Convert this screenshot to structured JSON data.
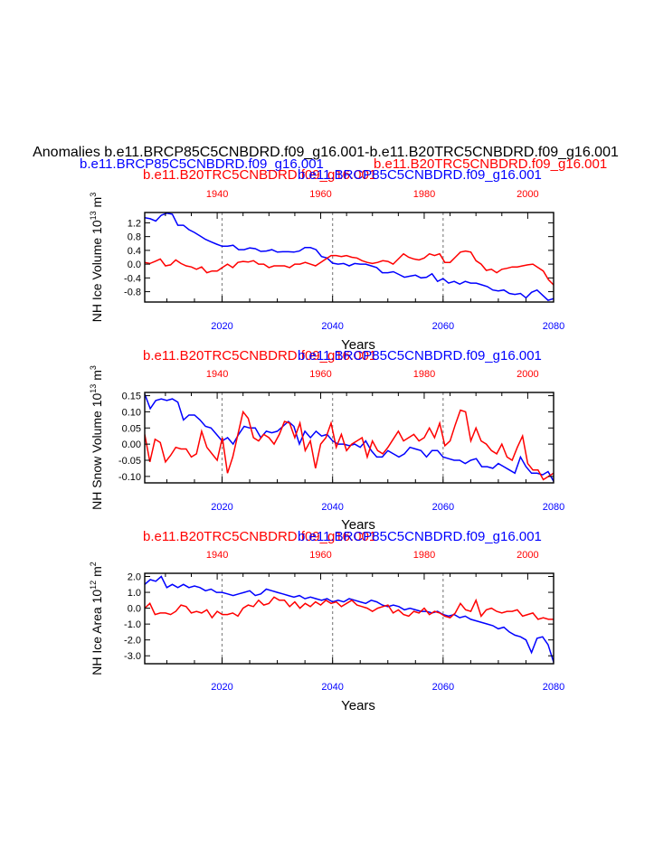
{
  "header": {
    "main_title": "Anomalies b.e11.BRCP85C5CNBDRD.f09_g16.001-b.e11.B20TRC5CNBDRD.f09_g16.001",
    "legend_blue": "b.e11.BRCP85C5CNBDRD.f09_g16.001",
    "legend_red": "b.e11.B20TRC5CNBDRD.f09_g16.001"
  },
  "colors": {
    "blue": "#0000ff",
    "red": "#ff0000",
    "grid": "#888888"
  },
  "chart_data": [
    {
      "type": "line",
      "ylabel_main": "NH Ice Volume 10",
      "ylabel_exp": "13",
      "ylabel_unit": " m",
      "ylabel_unit_exp": "3",
      "top_title_red": "b.e11.B20TRC5CNBDRD.f09_g16.001",
      "top_title_blue": "b.e11.BRCP85C5CNBDRD.f09_g16.001",
      "xlabel": "Years",
      "xlim": [
        2006,
        2080
      ],
      "ylim": [
        -1.1,
        1.5
      ],
      "yticks": [
        -0.8,
        -0.4,
        0.0,
        0.4,
        0.8,
        1.2
      ],
      "ytick_labels": [
        "-0.8",
        "-0.4",
        "0.0",
        "0.4",
        "0.8",
        "1.2"
      ],
      "bottom_xticks": [
        2020,
        2040,
        2060,
        2080
      ],
      "bottom_xtick_labels": [
        "2020",
        "2040",
        "2060",
        "2080"
      ],
      "top_xlim": [
        1926,
        2005
      ],
      "top_xticks": [
        1940,
        1960,
        1980,
        2000
      ],
      "top_xtick_labels": [
        "1940",
        "1960",
        "1980",
        "2000"
      ],
      "dashed_lines_x": [
        2020,
        2040,
        2060
      ],
      "series": [
        {
          "name": "b.e11.BRCP85C5CNBDRD.f09_g16.001",
          "color": "blue",
          "x_start": 2006,
          "values": [
            1.35,
            1.32,
            1.25,
            1.42,
            1.48,
            1.45,
            1.13,
            1.13,
            1.0,
            0.92,
            0.82,
            0.72,
            0.65,
            0.58,
            0.52,
            0.52,
            0.55,
            0.42,
            0.42,
            0.47,
            0.45,
            0.37,
            0.38,
            0.42,
            0.35,
            0.36,
            0.36,
            0.35,
            0.38,
            0.48,
            0.48,
            0.42,
            0.22,
            0.18,
            0.03,
            0.0,
            0.02,
            -0.05,
            0.02,
            0.0,
            0.0,
            -0.05,
            -0.1,
            -0.25,
            -0.25,
            -0.22,
            -0.3,
            -0.38,
            -0.35,
            -0.32,
            -0.4,
            -0.38,
            -0.28,
            -0.5,
            -0.42,
            -0.55,
            -0.5,
            -0.58,
            -0.5,
            -0.55,
            -0.55,
            -0.6,
            -0.65,
            -0.75,
            -0.78,
            -0.75,
            -0.85,
            -0.88,
            -0.85,
            -0.98,
            -0.82,
            -0.75,
            -0.9,
            -1.05,
            -1.0,
            -0.95
          ]
        },
        {
          "name": "b.e11.B20TRC5CNBDRD.f09_g16.001",
          "color": "red",
          "x_start": 1926,
          "values": [
            0.05,
            0.02,
            0.08,
            0.15,
            -0.05,
            -0.02,
            0.12,
            0.02,
            -0.05,
            -0.08,
            -0.15,
            -0.08,
            -0.25,
            -0.2,
            -0.2,
            -0.1,
            0.0,
            -0.1,
            0.05,
            0.08,
            0.06,
            0.1,
            0.0,
            0.0,
            -0.1,
            -0.05,
            -0.05,
            -0.05,
            -0.1,
            0.0,
            0.0,
            0.05,
            0.0,
            -0.05,
            0.05,
            0.15,
            0.25,
            0.25,
            0.22,
            0.25,
            0.2,
            0.18,
            0.1,
            0.05,
            0.02,
            0.05,
            0.1,
            0.08,
            0.0,
            0.15,
            0.3,
            0.2,
            0.15,
            0.12,
            0.18,
            0.3,
            0.25,
            0.3,
            0.05,
            0.05,
            0.2,
            0.35,
            0.38,
            0.35,
            0.1,
            0.0,
            -0.18,
            -0.15,
            -0.25,
            -0.15,
            -0.12,
            -0.08,
            -0.08,
            -0.05,
            -0.02,
            0.0,
            -0.1,
            -0.2,
            -0.45,
            -0.6,
            -0.7,
            -0.65
          ]
        }
      ]
    },
    {
      "type": "line",
      "ylabel_main": "NH Snow Volume 10",
      "ylabel_exp": "13",
      "ylabel_unit": " m",
      "ylabel_unit_exp": "3",
      "top_title_red": "b.e11.B20TRC5CNBDRD.f09_g16.001",
      "top_title_blue": "b.e11.BRCP85C5CNBDRD.f09_g16.001",
      "xlabel": "Years",
      "xlim": [
        2006,
        2080
      ],
      "ylim": [
        -0.12,
        0.16
      ],
      "yticks": [
        -0.1,
        -0.05,
        0.0,
        0.05,
        0.1,
        0.15
      ],
      "ytick_labels": [
        "-0.10",
        "-0.05",
        "0.00",
        "0.05",
        "0.10",
        "0.15"
      ],
      "bottom_xticks": [
        2020,
        2040,
        2060,
        2080
      ],
      "bottom_xtick_labels": [
        "2020",
        "2040",
        "2060",
        "2080"
      ],
      "top_xlim": [
        1926,
        2005
      ],
      "top_xticks": [
        1940,
        1960,
        1980,
        2000
      ],
      "top_xtick_labels": [
        "1940",
        "1960",
        "1980",
        "2000"
      ],
      "dashed_lines_x": [
        2020,
        2040,
        2060
      ],
      "series": [
        {
          "name": "b.e11.BRCP85C5CNBDRD.f09_g16.001",
          "color": "blue",
          "x_start": 2006,
          "values": [
            0.155,
            0.11,
            0.135,
            0.14,
            0.135,
            0.14,
            0.13,
            0.075,
            0.09,
            0.09,
            0.075,
            0.055,
            0.05,
            0.03,
            0.01,
            0.02,
            0.0,
            0.03,
            0.055,
            0.05,
            0.05,
            0.02,
            0.04,
            0.035,
            0.04,
            0.055,
            0.07,
            0.055,
            0.0,
            0.04,
            0.02,
            0.04,
            0.025,
            0.03,
            0.01,
            0.0,
            0.0,
            -0.005,
            0.0,
            -0.01,
            0.01,
            -0.02,
            -0.04,
            -0.04,
            -0.02,
            -0.03,
            -0.04,
            -0.03,
            -0.01,
            -0.015,
            -0.02,
            -0.04,
            -0.02,
            -0.02,
            -0.04,
            -0.045,
            -0.05,
            -0.05,
            -0.06,
            -0.05,
            -0.045,
            -0.07,
            -0.07,
            -0.075,
            -0.06,
            -0.07,
            -0.08,
            -0.09,
            -0.04,
            -0.07,
            -0.09,
            -0.09,
            -0.095,
            -0.085,
            -0.115,
            -0.11
          ]
        },
        {
          "name": "b.e11.B20TRC5CNBDRD.f09_g16.001",
          "color": "red",
          "x_start": 1926,
          "values": [
            0.03,
            -0.055,
            0.015,
            0.005,
            -0.055,
            -0.035,
            -0.01,
            -0.015,
            -0.015,
            -0.04,
            -0.03,
            0.04,
            -0.01,
            -0.03,
            -0.05,
            0.02,
            -0.09,
            -0.04,
            0.03,
            0.1,
            0.08,
            0.02,
            0.01,
            0.03,
            0.02,
            0.0,
            0.03,
            0.07,
            0.065,
            0.02,
            0.065,
            -0.02,
            0.01,
            -0.075,
            0.0,
            0.02,
            0.065,
            -0.01,
            0.03,
            -0.02,
            0.0,
            0.01,
            0.02,
            -0.04,
            0.01,
            -0.02,
            -0.03,
            -0.01,
            0.015,
            0.04,
            0.01,
            0.02,
            0.03,
            0.01,
            0.02,
            0.05,
            0.02,
            0.065,
            -0.005,
            0.01,
            0.06,
            0.105,
            0.1,
            0.01,
            0.05,
            0.01,
            0.0,
            -0.02,
            -0.03,
            0.0,
            -0.04,
            -0.05,
            -0.01,
            0.025,
            -0.06,
            -0.08,
            -0.08,
            -0.11,
            -0.1,
            -0.09
          ]
        }
      ]
    },
    {
      "type": "line",
      "ylabel_main": "NH Ice Area 10",
      "ylabel_exp": "12",
      "ylabel_unit": " m",
      "ylabel_unit_exp": "2",
      "top_title_red": "b.e11.B20TRC5CNBDRD.f09_g16.001",
      "top_title_blue": "b.e11.BRCP85C5CNBDRD.f09_g16.001",
      "xlabel": "Years",
      "xlim": [
        2006,
        2080
      ],
      "ylim": [
        -3.5,
        2.2
      ],
      "yticks": [
        -3.0,
        -2.0,
        -1.0,
        0.0,
        1.0,
        2.0
      ],
      "ytick_labels": [
        "-3.0",
        "-2.0",
        "-1.0",
        "0.0",
        "1.0",
        "2.0"
      ],
      "bottom_xticks": [
        2020,
        2040,
        2060,
        2080
      ],
      "bottom_xtick_labels": [
        "2020",
        "2040",
        "2060",
        "2080"
      ],
      "top_xlim": [
        1926,
        2005
      ],
      "top_xticks": [
        1940,
        1960,
        1980,
        2000
      ],
      "top_xtick_labels": [
        "1940",
        "1960",
        "1980",
        "2000"
      ],
      "dashed_lines_x": [
        2020,
        2040,
        2060
      ],
      "series": [
        {
          "name": "b.e11.BRCP85C5CNBDRD.f09_g16.001",
          "color": "blue",
          "x_start": 2006,
          "values": [
            1.5,
            1.8,
            1.7,
            2.0,
            1.3,
            1.5,
            1.3,
            1.5,
            1.3,
            1.4,
            1.3,
            1.1,
            1.2,
            1.0,
            1.0,
            0.9,
            0.8,
            0.9,
            1.0,
            1.1,
            0.8,
            0.9,
            1.2,
            1.1,
            1.0,
            0.9,
            0.8,
            0.7,
            0.8,
            0.6,
            0.7,
            0.6,
            0.5,
            0.6,
            0.4,
            0.5,
            0.4,
            0.6,
            0.5,
            0.4,
            0.3,
            0.5,
            0.4,
            0.2,
            0.1,
            0.2,
            0.1,
            -0.1,
            0.0,
            -0.1,
            -0.2,
            -0.2,
            -0.3,
            -0.2,
            -0.4,
            -0.5,
            -0.4,
            -0.6,
            -0.5,
            -0.7,
            -0.8,
            -0.9,
            -1.0,
            -1.1,
            -1.3,
            -1.2,
            -1.5,
            -1.7,
            -1.8,
            -2.0,
            -2.8,
            -1.9,
            -1.8,
            -2.3,
            -3.4,
            -2.8
          ]
        },
        {
          "name": "b.e11.B20TRC5CNBDRD.f09_g16.001",
          "color": "red",
          "x_start": 1926,
          "values": [
            0.0,
            0.3,
            -0.4,
            -0.3,
            -0.3,
            -0.4,
            -0.2,
            0.2,
            0.1,
            -0.3,
            -0.2,
            -0.3,
            -0.1,
            -0.6,
            -0.2,
            -0.4,
            -0.4,
            -0.3,
            -0.5,
            0.0,
            0.2,
            0.1,
            0.5,
            0.2,
            0.3,
            0.7,
            0.5,
            0.5,
            0.1,
            0.4,
            0.0,
            0.3,
            0.1,
            0.4,
            0.2,
            0.5,
            0.3,
            0.4,
            0.1,
            0.3,
            0.5,
            0.2,
            0.1,
            0.0,
            -0.2,
            0.0,
            0.1,
            0.2,
            -0.3,
            -0.1,
            -0.4,
            -0.5,
            -0.2,
            -0.3,
            0.0,
            -0.4,
            -0.2,
            -0.3,
            -0.5,
            -0.6,
            -0.3,
            0.3,
            -0.1,
            -0.2,
            0.5,
            -0.5,
            -0.1,
            0.0,
            -0.2,
            -0.3,
            -0.2,
            -0.2,
            -0.1,
            -0.5,
            -0.4,
            -0.3,
            -0.7,
            -0.6,
            -0.7,
            -0.7
          ]
        }
      ]
    }
  ]
}
